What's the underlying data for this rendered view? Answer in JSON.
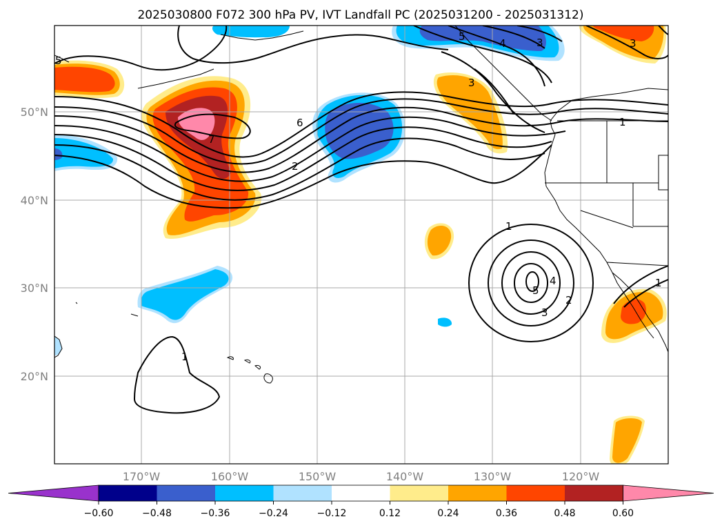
{
  "title": "2025030800 F072 300 hPa PV, IVT Landfall PC (2025031200 - 2025031312)",
  "latitude_labels": [
    "50°N",
    "40°N",
    "30°N",
    "20°N"
  ],
  "longitude_labels": [
    "170°W",
    "160°W",
    "150°W",
    "140°W",
    "130°W",
    "120°W"
  ],
  "colorbar": {
    "ticks": [
      "−0.60",
      "−0.48",
      "−0.36",
      "−0.24",
      "−0.12",
      "0.12",
      "0.24",
      "0.36",
      "0.48",
      "0.60"
    ],
    "colors": [
      "#9932cc",
      "#00008b",
      "#3a5fcd",
      "#00bfff",
      "#b0e2ff",
      "#ffffff",
      "#ffec8b",
      "#ffa500",
      "#ff4500",
      "#b22222",
      "#ff88aa"
    ]
  },
  "contour_labels": [
    "5",
    "5",
    "4",
    "3",
    "3",
    "1",
    "6",
    "7",
    "2",
    "1",
    "4",
    "5",
    "2",
    "3",
    "1",
    "1",
    "3"
  ],
  "colors": {
    "shading_positive": "#ffa500",
    "shading_negative": "#00bfff",
    "contour": "#000000",
    "grid": "#a9a9a9"
  }
}
